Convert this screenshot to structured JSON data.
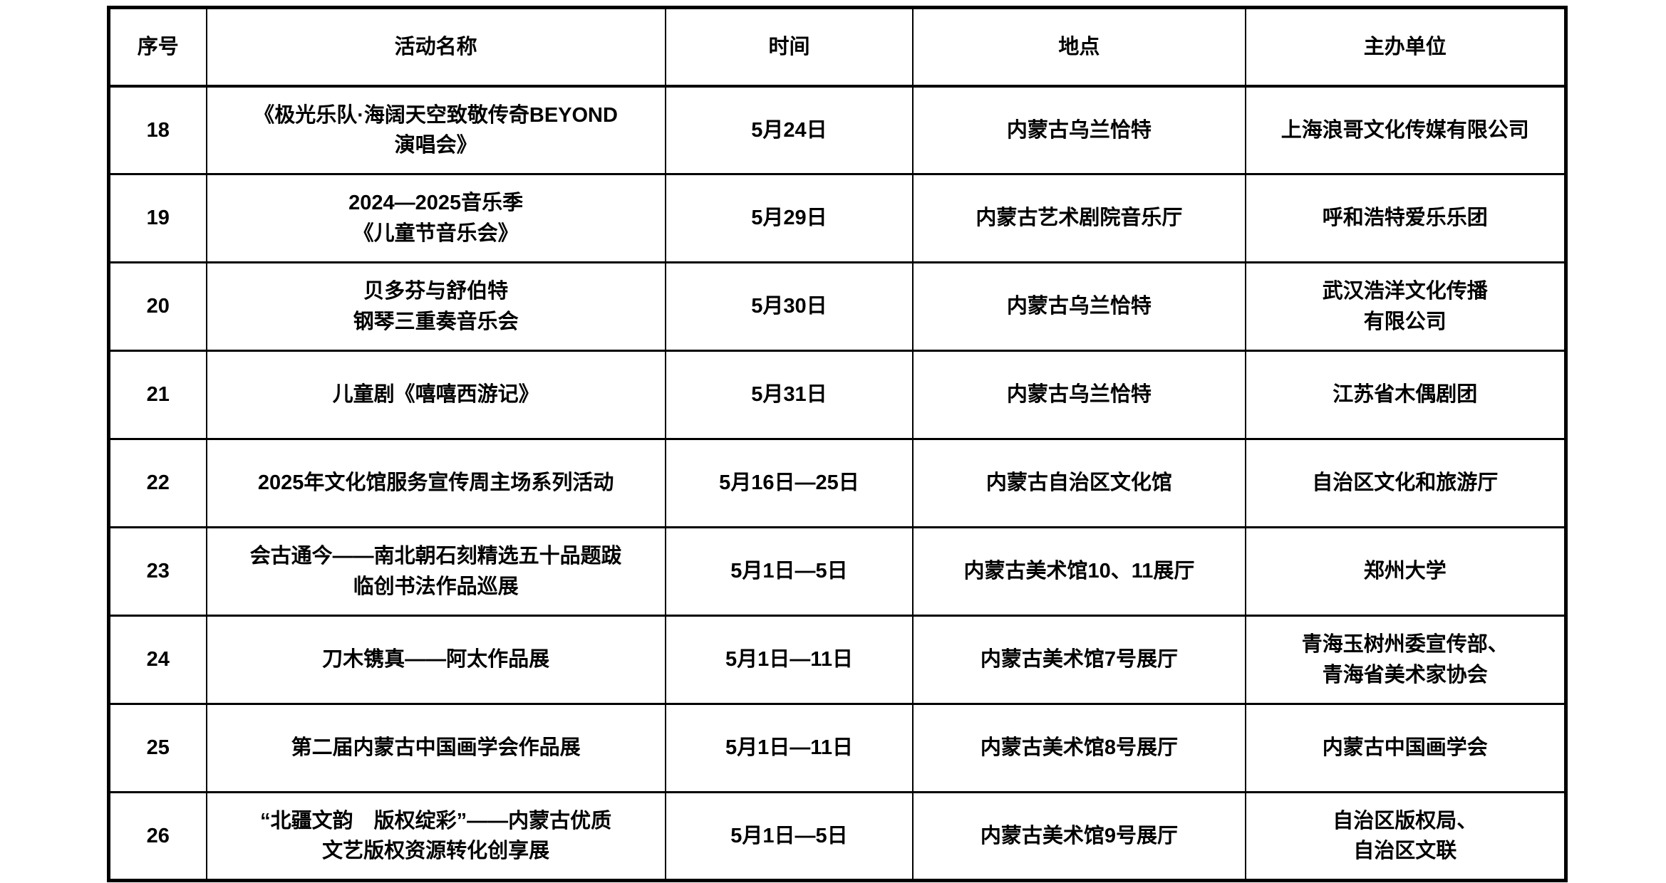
{
  "table": {
    "columns": [
      "序号",
      "活动名称",
      "时间",
      "地点",
      "主办单位"
    ],
    "rows": [
      {
        "no": "18",
        "name_lines": [
          "《极光乐队·海阔天空致敬传奇BEYOND",
          "演唱会》"
        ],
        "time": "5月24日",
        "location_lines": [
          "内蒙古乌兰恰特"
        ],
        "organizer_lines": [
          "上海浪哥文化传媒有限公司"
        ]
      },
      {
        "no": "19",
        "name_lines": [
          "2024—2025音乐季",
          "《儿童节音乐会》"
        ],
        "time": "5月29日",
        "location_lines": [
          "内蒙古艺术剧院音乐厅"
        ],
        "organizer_lines": [
          "呼和浩特爱乐乐团"
        ]
      },
      {
        "no": "20",
        "name_lines": [
          "贝多芬与舒伯特",
          "钢琴三重奏音乐会"
        ],
        "time": "5月30日",
        "location_lines": [
          "内蒙古乌兰恰特"
        ],
        "organizer_lines": [
          "武汉浩洋文化传播",
          "有限公司"
        ]
      },
      {
        "no": "21",
        "name_lines": [
          "儿童剧《嘻嘻西游记》"
        ],
        "time": "5月31日",
        "location_lines": [
          "内蒙古乌兰恰特"
        ],
        "organizer_lines": [
          "江苏省木偶剧团"
        ]
      },
      {
        "no": "22",
        "name_lines": [
          "2025年文化馆服务宣传周主场系列活动"
        ],
        "time": "5月16日—25日",
        "location_lines": [
          "内蒙古自治区文化馆"
        ],
        "organizer_lines": [
          "自治区文化和旅游厅"
        ]
      },
      {
        "no": "23",
        "name_lines": [
          "会古通今——南北朝石刻精选五十品题跋",
          "临创书法作品巡展"
        ],
        "time": "5月1日—5日",
        "location_lines": [
          "内蒙古美术馆10、11展厅"
        ],
        "organizer_lines": [
          "郑州大学"
        ]
      },
      {
        "no": "24",
        "name_lines": [
          "刀木镌真——阿太作品展"
        ],
        "time": "5月1日—11日",
        "location_lines": [
          "内蒙古美术馆7号展厅"
        ],
        "organizer_lines": [
          "青海玉树州委宣传部、",
          "青海省美术家协会"
        ]
      },
      {
        "no": "25",
        "name_lines": [
          "第二届内蒙古中国画学会作品展"
        ],
        "time": "5月1日—11日",
        "location_lines": [
          "内蒙古美术馆8号展厅"
        ],
        "organizer_lines": [
          "内蒙古中国画学会"
        ]
      },
      {
        "no": "26",
        "name_lines": [
          "“北疆文韵　版权绽彩”——内蒙古优质",
          "文艺版权资源转化创享展"
        ],
        "time": "5月1日—5日",
        "location_lines": [
          "内蒙古美术馆9号展厅"
        ],
        "organizer_lines": [
          "自治区版权局、",
          "自治区文联"
        ]
      }
    ],
    "colors": {
      "border": "#000000",
      "text": "#000000",
      "background": "#ffffff"
    }
  }
}
